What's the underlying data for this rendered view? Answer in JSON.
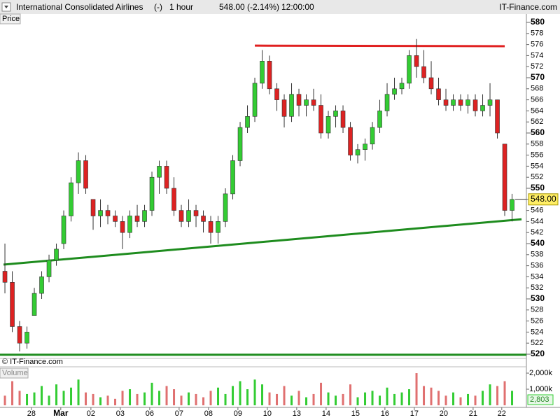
{
  "chart_data": {
    "type": "candlestick",
    "header": [
      "International Consolidated Airlines",
      "(-)",
      "1 hour",
      "548.00 (-2.14%)",
      "12:00:00"
    ],
    "source": "IT-Finance.com",
    "axis_label": "Price",
    "watermark": "© IT-Finance.com",
    "up_color": "#33cc33",
    "down_color": "#dd2222",
    "xlim": [
      -0.67,
      70.95
    ],
    "xticks": [
      {
        "value": 3.6,
        "label": "28"
      },
      {
        "value": 7.6,
        "label": "Mar"
      },
      {
        "value": 11.7,
        "label": "02"
      },
      {
        "value": 15.7,
        "label": "03"
      },
      {
        "value": 19.7,
        "label": "06"
      },
      {
        "value": 23.7,
        "label": "07"
      },
      {
        "value": 27.7,
        "label": "08"
      },
      {
        "value": 31.7,
        "label": "09"
      },
      {
        "value": 35.7,
        "label": "10"
      },
      {
        "value": 39.7,
        "label": "13"
      },
      {
        "value": 43.7,
        "label": "14"
      },
      {
        "value": 47.7,
        "label": "15"
      },
      {
        "value": 51.7,
        "label": "16"
      },
      {
        "value": 55.7,
        "label": "17"
      },
      {
        "value": 59.7,
        "label": "20"
      },
      {
        "value": 63.7,
        "label": "21"
      },
      {
        "value": 67.6,
        "label": "22"
      }
    ],
    "ylim": [
      519.24,
      581.52
    ],
    "yticks": [
      520,
      522,
      524,
      526,
      528,
      530,
      532,
      534,
      536,
      538,
      540,
      542,
      544,
      546,
      548,
      550,
      552,
      554,
      556,
      558,
      560,
      562,
      564,
      566,
      568,
      570,
      572,
      574,
      576,
      578,
      580
    ],
    "open": [
      535,
      533,
      525,
      522,
      527,
      531,
      534,
      537,
      540,
      545,
      551,
      555,
      548,
      545,
      546,
      545,
      544,
      542,
      545,
      544,
      546,
      552,
      554,
      550,
      546,
      544,
      546,
      545,
      544,
      542,
      544,
      549,
      555,
      561,
      563,
      569,
      573,
      568,
      566,
      563,
      567,
      565,
      566,
      565,
      560,
      563,
      564,
      561,
      556,
      557,
      558,
      561,
      564,
      567,
      568,
      569,
      574,
      572,
      570,
      568,
      566,
      565,
      566,
      565,
      566,
      564,
      565,
      566,
      558,
      546
    ],
    "high": [
      540,
      535,
      526,
      525,
      532,
      535,
      538,
      540,
      546,
      552,
      556.5,
      556,
      548,
      548,
      547,
      546,
      545,
      546,
      547,
      547,
      553,
      555,
      555,
      552,
      547,
      548,
      547,
      546,
      545,
      545,
      550,
      556,
      562,
      565,
      570,
      575,
      574,
      569,
      567,
      569,
      568,
      567,
      568,
      567,
      564,
      565,
      565,
      562,
      558,
      559,
      562,
      566,
      569,
      570,
      570,
      575,
      577,
      575,
      573,
      570,
      568,
      567,
      567,
      567,
      567,
      567,
      569,
      566,
      558,
      549
    ],
    "low": [
      531,
      524,
      520.5,
      521,
      527,
      530,
      533,
      536,
      539,
      544,
      549,
      549,
      542.5,
      543,
      543.5,
      543,
      539,
      541,
      543,
      543,
      545,
      549,
      549,
      545,
      543,
      543,
      543,
      542,
      540,
      540,
      543,
      548,
      554,
      560,
      562,
      568,
      567,
      564,
      561,
      562,
      563,
      563,
      564,
      559,
      559,
      561,
      560,
      555,
      554.5,
      555,
      557,
      560,
      563,
      566,
      567,
      568,
      570,
      569,
      567,
      565,
      564,
      564,
      564,
      563.5,
      563,
      563,
      563,
      559,
      545,
      544
    ],
    "close": [
      533,
      525,
      522,
      524,
      531,
      534,
      537,
      539,
      545,
      551,
      555,
      550,
      545,
      546,
      545,
      544,
      542,
      545,
      544,
      546,
      552,
      554,
      550,
      546,
      544,
      546,
      545,
      544,
      542,
      544,
      549,
      555,
      561,
      563,
      569,
      573,
      568,
      566,
      563,
      567,
      565,
      566,
      565,
      560,
      563,
      564,
      561,
      556,
      557,
      558,
      561,
      564,
      567,
      568,
      569,
      574,
      572,
      570,
      568,
      566,
      565,
      566,
      565,
      566,
      564,
      565,
      566,
      560,
      546,
      548
    ],
    "last_price": {
      "value": 548,
      "label": "548.00"
    },
    "trendlines": [
      {
        "color": "#e02020",
        "points": [
          [
            34,
            575.8
          ],
          [
            68,
            575.7
          ]
        ]
      },
      {
        "color": "#1e8c1e",
        "points": [
          [
            -0.19,
            536.2
          ],
          [
            70.29,
            544.4
          ]
        ]
      },
      {
        "color": "#1e8c1e",
        "points": [
          [
            -0.67,
            519.9
          ],
          [
            70.95,
            519.9
          ]
        ]
      }
    ],
    "volume": {
      "label": "Volume",
      "ylim": [
        0,
        2350
      ],
      "yticks": [
        {
          "value": 2000,
          "label": "2,000k"
        },
        {
          "value": 1000,
          "label": "1,000k"
        }
      ],
      "readout": "2,803",
      "values": [
        600,
        1500,
        900,
        700,
        800,
        1200,
        600,
        1300,
        900,
        1100,
        1600,
        800,
        700,
        500,
        600,
        400,
        900,
        1000,
        700,
        800,
        1400,
        900,
        1200,
        1000,
        600,
        800,
        700,
        500,
        900,
        1100,
        700,
        1200,
        1500,
        1000,
        1600,
        1300,
        800,
        700,
        1200,
        600,
        900,
        500,
        700,
        1400,
        800,
        600,
        700,
        1300,
        500,
        800,
        900,
        600,
        1100,
        700,
        800,
        1000,
        2000,
        1200,
        1100,
        900,
        600,
        800,
        500,
        700,
        600,
        900,
        1300,
        1200,
        1500,
        900
      ]
    }
  }
}
